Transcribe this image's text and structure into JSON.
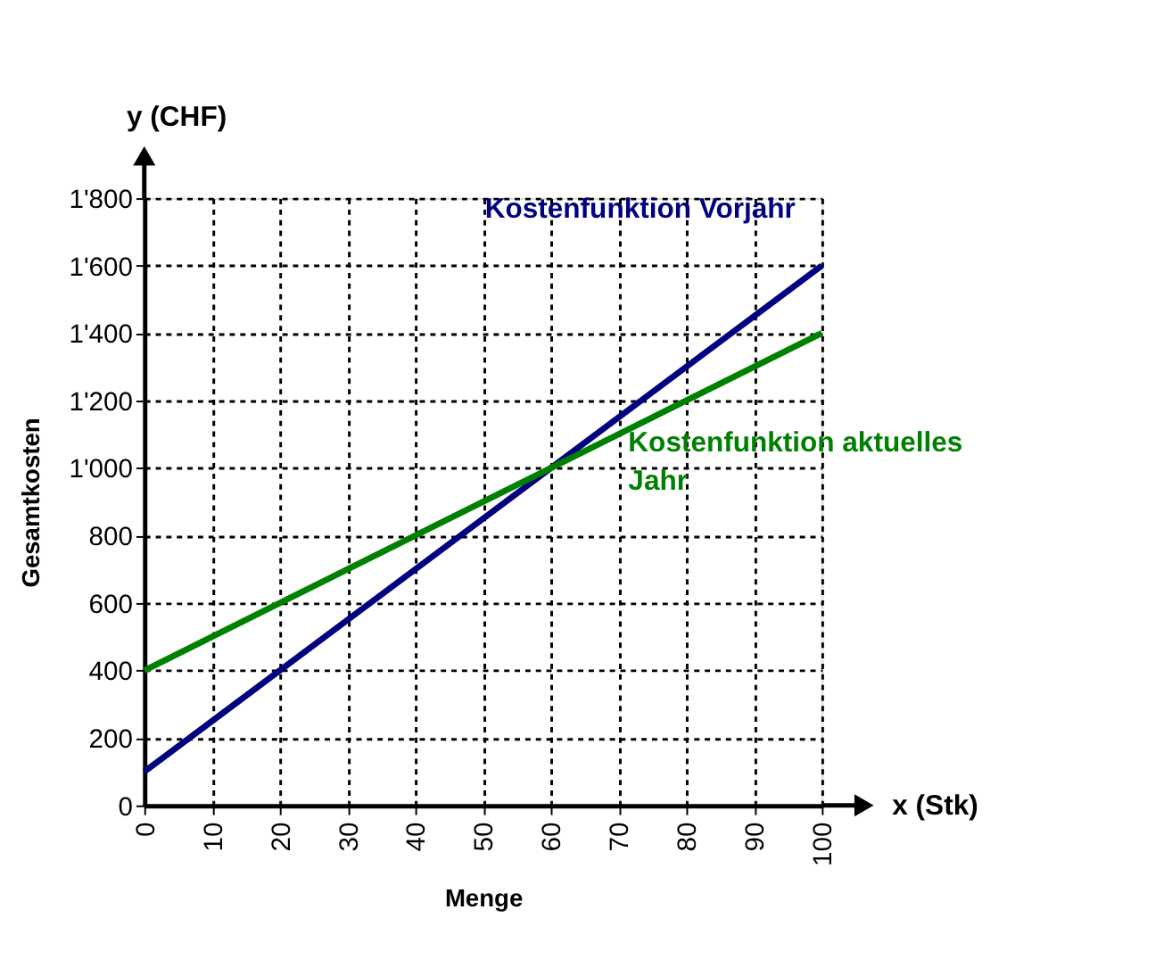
{
  "chart_data": {
    "type": "line",
    "x": [
      0,
      100
    ],
    "xlabel": "Menge",
    "ylabel": "Gesamtkosten",
    "annotations": [
      "x (Stk)",
      "y (CHF)"
    ],
    "series": [
      {
        "name": "Kostenfunktion Vorjahr",
        "color": "#000080",
        "values": [
          100,
          1600
        ]
      },
      {
        "name": "Kostenfunktion aktuelles Jahr",
        "color": "#008000",
        "values": [
          400,
          1400
        ]
      }
    ],
    "xlim": [
      0,
      100
    ],
    "xticks": [
      0,
      10,
      20,
      30,
      40,
      50,
      60,
      70,
      80,
      90,
      100
    ],
    "ylim": [
      0,
      1800
    ],
    "yticks": [
      0,
      200,
      400,
      600,
      800,
      {
        "value": 1000,
        "label": "1'000"
      },
      {
        "value": 1200,
        "label": "1'200"
      },
      {
        "value": 1400,
        "label": "1'400"
      },
      {
        "value": 1600,
        "label": "1'600"
      },
      {
        "value": 1800,
        "label": "1'800"
      }
    ],
    "grid": true,
    "legend": false,
    "marker": "none",
    "line_style": "solid"
  }
}
